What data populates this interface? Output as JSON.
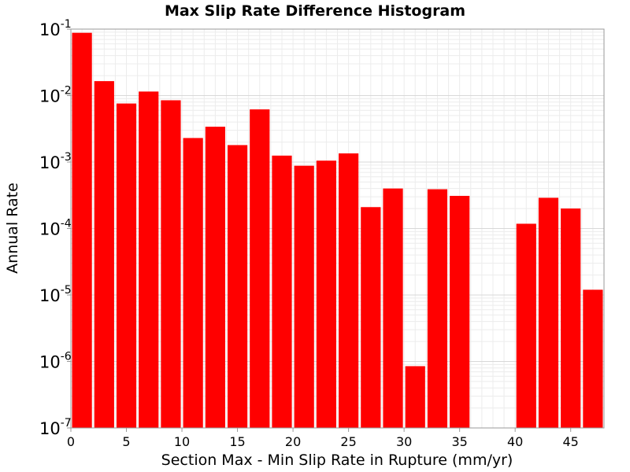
{
  "chart_data": {
    "type": "bar",
    "title": "Max Slip Rate Difference Histogram",
    "xlabel": "Section Max - Min Slip Rate in Rupture (mm/yr)",
    "ylabel": "Annual Rate",
    "y_scale": "log",
    "xlim": [
      0,
      48
    ],
    "ylim": [
      1e-07,
      0.1
    ],
    "bin_width": 2,
    "bar_color": "#ff0000",
    "grid": true,
    "legend": "none",
    "x_ticks": [
      "0",
      "5",
      "10",
      "15",
      "20",
      "25",
      "30",
      "35",
      "40",
      "45"
    ],
    "y_ticks": [
      {
        "base": "10",
        "exp": "-7"
      },
      {
        "base": "10",
        "exp": "-6"
      },
      {
        "base": "10",
        "exp": "-5"
      },
      {
        "base": "10",
        "exp": "-4"
      },
      {
        "base": "10",
        "exp": "-3"
      },
      {
        "base": "10",
        "exp": "-2"
      },
      {
        "base": "10",
        "exp": "-1"
      }
    ],
    "bins": [
      {
        "x": 1,
        "value": 0.088
      },
      {
        "x": 3,
        "value": 0.0165
      },
      {
        "x": 5,
        "value": 0.0076
      },
      {
        "x": 7,
        "value": 0.0115
      },
      {
        "x": 9,
        "value": 0.0085
      },
      {
        "x": 11,
        "value": 0.0023
      },
      {
        "x": 13,
        "value": 0.0034
      },
      {
        "x": 15,
        "value": 0.0018
      },
      {
        "x": 17,
        "value": 0.0062
      },
      {
        "x": 19,
        "value": 0.00125
      },
      {
        "x": 21,
        "value": 0.00088
      },
      {
        "x": 23,
        "value": 0.00105
      },
      {
        "x": 25,
        "value": 0.00135
      },
      {
        "x": 27,
        "value": 0.00021
      },
      {
        "x": 29,
        "value": 0.0004
      },
      {
        "x": 31,
        "value": 8.5e-07
      },
      {
        "x": 33,
        "value": 0.00039
      },
      {
        "x": 35,
        "value": 0.00031
      },
      {
        "x": 37,
        "value": null
      },
      {
        "x": 39,
        "value": null
      },
      {
        "x": 41,
        "value": 0.000118
      },
      {
        "x": 43,
        "value": 0.00029
      },
      {
        "x": 45,
        "value": 0.0002
      },
      {
        "x": 47,
        "value": 1.2e-05
      }
    ]
  }
}
